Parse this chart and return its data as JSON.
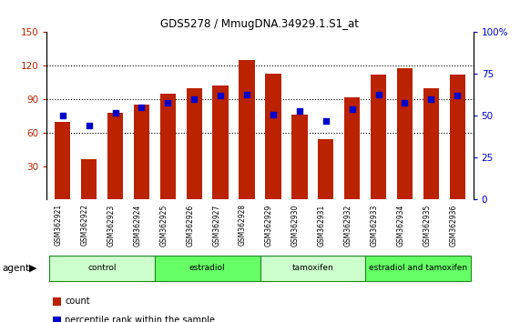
{
  "title": "GDS5278 / MmugDNA.34929.1.S1_at",
  "samples": [
    "GSM362921",
    "GSM362922",
    "GSM362923",
    "GSM362924",
    "GSM362925",
    "GSM362926",
    "GSM362927",
    "GSM362928",
    "GSM362929",
    "GSM362930",
    "GSM362931",
    "GSM362932",
    "GSM362933",
    "GSM362934",
    "GSM362935",
    "GSM362936"
  ],
  "counts": [
    70,
    36,
    78,
    85,
    95,
    100,
    102,
    125,
    113,
    76,
    54,
    92,
    112,
    118,
    100,
    112
  ],
  "percentile_ranks": [
    50,
    44,
    52,
    55,
    58,
    60,
    62,
    63,
    51,
    53,
    47,
    54,
    63,
    58,
    60,
    62
  ],
  "groups": [
    {
      "label": "control",
      "start": 0,
      "end": 4,
      "color": "#ccffcc"
    },
    {
      "label": "estradiol",
      "start": 4,
      "end": 8,
      "color": "#66ff66"
    },
    {
      "label": "tamoxifen",
      "start": 8,
      "end": 12,
      "color": "#ccffcc"
    },
    {
      "label": "estradiol and tamoxifen",
      "start": 12,
      "end": 16,
      "color": "#66ff66"
    }
  ],
  "bar_color": "#bb2200",
  "dot_color": "#0000cc",
  "ylim_left": [
    0,
    150
  ],
  "ylim_right": [
    0,
    100
  ],
  "yticks_left": [
    30,
    60,
    90,
    120,
    150
  ],
  "yticks_right": [
    0,
    25,
    50,
    75,
    100
  ],
  "background_color": "#ffffff",
  "tick_area_color": "#c8c8c8"
}
